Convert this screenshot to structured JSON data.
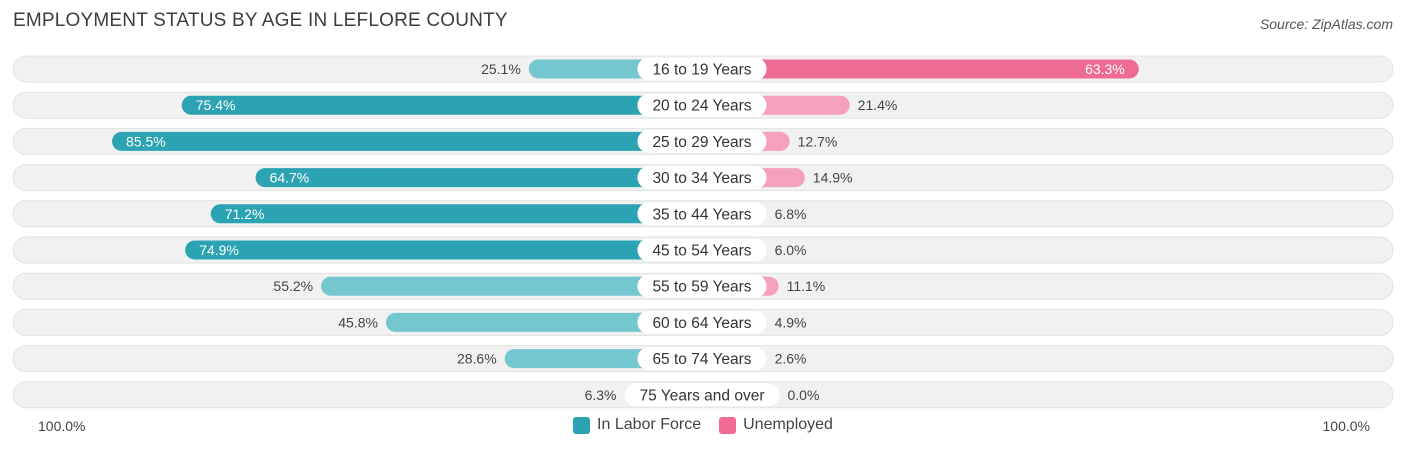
{
  "title": "EMPLOYMENT STATUS BY AGE IN LEFLORE COUNTY",
  "source": "Source: ZipAtlas.com",
  "colors": {
    "labor_dark": "#2ba3b3",
    "labor_light": "#74c6cf",
    "unemp_dark": "#f06b94",
    "unemp_light": "#f5a1bd",
    "row_bg": "#f1f1f1"
  },
  "chart_data": {
    "type": "bar",
    "orientation": "diverging-horizontal",
    "title": "EMPLOYMENT STATUS BY AGE IN LEFLORE COUNTY",
    "categories": [
      "16 to 19 Years",
      "20 to 24 Years",
      "25 to 29 Years",
      "30 to 34 Years",
      "35 to 44 Years",
      "45 to 54 Years",
      "55 to 59 Years",
      "60 to 64 Years",
      "65 to 74 Years",
      "75 Years and over"
    ],
    "series": [
      {
        "name": "In Labor Force",
        "values": [
          25.1,
          75.4,
          85.5,
          64.7,
          71.2,
          74.9,
          55.2,
          45.8,
          28.6,
          6.3
        ],
        "labels": [
          "25.1%",
          "75.4%",
          "85.5%",
          "64.7%",
          "71.2%",
          "74.9%",
          "55.2%",
          "45.8%",
          "28.6%",
          "6.3%"
        ]
      },
      {
        "name": "Unemployed",
        "values": [
          63.3,
          21.4,
          12.7,
          14.9,
          6.8,
          6.0,
          11.1,
          4.9,
          2.6,
          0.0
        ],
        "labels": [
          "63.3%",
          "21.4%",
          "12.7%",
          "14.9%",
          "6.8%",
          "6.0%",
          "11.1%",
          "4.9%",
          "2.6%",
          "0.0%"
        ]
      }
    ],
    "xlim": [
      -100,
      100
    ],
    "axis_labels": {
      "left": "100.0%",
      "right": "100.0%"
    },
    "legend": [
      "In Labor Force",
      "Unemployed"
    ],
    "legend_position": "bottom-center"
  }
}
